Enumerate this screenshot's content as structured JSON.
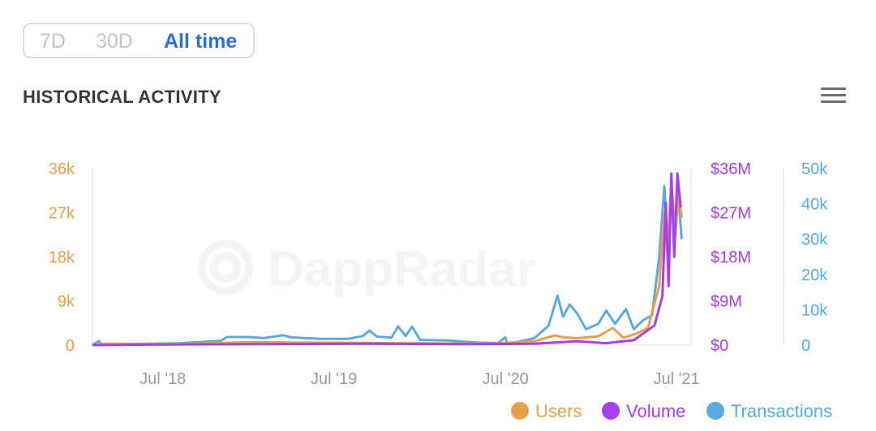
{
  "range_tabs": [
    "7D",
    "30D",
    "All time"
  ],
  "active_range": "All time",
  "section_title": "HISTORICAL ACTIVITY",
  "menu_icon": "hamburger-menu-icon",
  "watermark": "DappRadar",
  "colors": {
    "users": "#e8a04a",
    "volume": "#a83ff0",
    "transactions": "#5aabe0",
    "tab_active": "#2f6fd6",
    "tab_inactive": "#c4c4c4"
  },
  "chart_data": {
    "type": "line",
    "x_ticks": [
      "Jul '18",
      "Jul '19",
      "Jul '20",
      "Jul '21"
    ],
    "x_range": [
      "2018-02",
      "2021-08"
    ],
    "y_axes": {
      "users": {
        "ticks": [
          "0",
          "9k",
          "18k",
          "27k",
          "36k"
        ],
        "range": [
          0,
          36000
        ]
      },
      "volume": {
        "ticks": [
          "$0",
          "$9M",
          "$18M",
          "$27M",
          "$36M"
        ],
        "range": [
          0,
          36000000
        ]
      },
      "transactions": {
        "ticks": [
          "0",
          "10k",
          "20k",
          "30k",
          "40k",
          "50k"
        ],
        "range": [
          0,
          50000
        ]
      }
    },
    "legend": [
      "Users",
      "Volume",
      "Transactions"
    ],
    "legend_position": "bottom-right",
    "series": [
      {
        "name": "Transactions",
        "axis": "transactions",
        "points": [
          [
            "2018-02-01",
            0
          ],
          [
            "2018-02-15",
            1200
          ],
          [
            "2018-02-20",
            200
          ],
          [
            "2018-04-01",
            300
          ],
          [
            "2018-08-01",
            500
          ],
          [
            "2018-11-01",
            1200
          ],
          [
            "2018-11-15",
            2300
          ],
          [
            "2019-01-01",
            2300
          ],
          [
            "2019-02-01",
            2000
          ],
          [
            "2019-03-15",
            2800
          ],
          [
            "2019-04-01",
            2200
          ],
          [
            "2019-06-01",
            1800
          ],
          [
            "2019-08-01",
            1800
          ],
          [
            "2019-09-01",
            2600
          ],
          [
            "2019-09-15",
            4100
          ],
          [
            "2019-10-01",
            2400
          ],
          [
            "2019-11-01",
            2100
          ],
          [
            "2019-11-15",
            5300
          ],
          [
            "2019-12-01",
            2600
          ],
          [
            "2019-12-15",
            5200
          ],
          [
            "2020-01-01",
            1500
          ],
          [
            "2020-03-01",
            1300
          ],
          [
            "2020-05-01",
            700
          ],
          [
            "2020-06-15",
            600
          ],
          [
            "2020-07-01",
            2200
          ],
          [
            "2020-07-05",
            300
          ],
          [
            "2020-09-01",
            2000
          ],
          [
            "2020-10-01",
            5500
          ],
          [
            "2020-10-20",
            14000
          ],
          [
            "2020-11-01",
            8000
          ],
          [
            "2020-11-15",
            11500
          ],
          [
            "2020-12-01",
            9000
          ],
          [
            "2020-12-20",
            4500
          ],
          [
            "2021-01-15",
            6000
          ],
          [
            "2021-02-01",
            9800
          ],
          [
            "2021-02-20",
            6000
          ],
          [
            "2021-03-15",
            10200
          ],
          [
            "2021-04-01",
            4500
          ],
          [
            "2021-04-20",
            7000
          ],
          [
            "2021-05-10",
            8500
          ],
          [
            "2021-05-25",
            25000
          ],
          [
            "2021-06-05",
            45000
          ],
          [
            "2021-06-12",
            28000
          ],
          [
            "2021-06-20",
            46000
          ],
          [
            "2021-06-28",
            32000
          ],
          [
            "2021-07-05",
            42000
          ],
          [
            "2021-07-12",
            30000
          ]
        ]
      },
      {
        "name": "Users",
        "axis": "users",
        "points": [
          [
            "2018-02-01",
            0
          ],
          [
            "2018-03-01",
            300
          ],
          [
            "2018-06-01",
            200
          ],
          [
            "2018-09-01",
            300
          ],
          [
            "2019-01-01",
            600
          ],
          [
            "2019-06-01",
            500
          ],
          [
            "2019-12-01",
            400
          ],
          [
            "2020-06-01",
            300
          ],
          [
            "2020-09-01",
            800
          ],
          [
            "2020-10-15",
            2000
          ],
          [
            "2020-11-01",
            1600
          ],
          [
            "2020-12-01",
            1400
          ],
          [
            "2021-01-15",
            1800
          ],
          [
            "2021-02-15",
            3500
          ],
          [
            "2021-03-10",
            1500
          ],
          [
            "2021-04-10",
            2500
          ],
          [
            "2021-05-01",
            3500
          ],
          [
            "2021-05-25",
            12000
          ],
          [
            "2021-06-05",
            27000
          ],
          [
            "2021-06-12",
            18000
          ],
          [
            "2021-06-20",
            33000
          ],
          [
            "2021-06-28",
            22000
          ],
          [
            "2021-07-05",
            31000
          ],
          [
            "2021-07-12",
            26000
          ]
        ]
      },
      {
        "name": "Volume",
        "axis": "volume",
        "points": [
          [
            "2018-02-01",
            0
          ],
          [
            "2018-06-01",
            100000
          ],
          [
            "2019-01-01",
            200000
          ],
          [
            "2019-09-01",
            300000
          ],
          [
            "2020-04-01",
            200000
          ],
          [
            "2020-09-01",
            300000
          ],
          [
            "2020-12-01",
            800000
          ],
          [
            "2021-02-01",
            400000
          ],
          [
            "2021-04-01",
            1000000
          ],
          [
            "2021-05-15",
            4000000
          ],
          [
            "2021-06-01",
            10000000
          ],
          [
            "2021-06-08",
            29000000
          ],
          [
            "2021-06-14",
            12000000
          ],
          [
            "2021-06-20",
            35000000
          ],
          [
            "2021-06-26",
            18000000
          ],
          [
            "2021-07-03",
            35000000
          ],
          [
            "2021-07-10",
            28000000
          ]
        ]
      }
    ]
  },
  "data_note": ""
}
